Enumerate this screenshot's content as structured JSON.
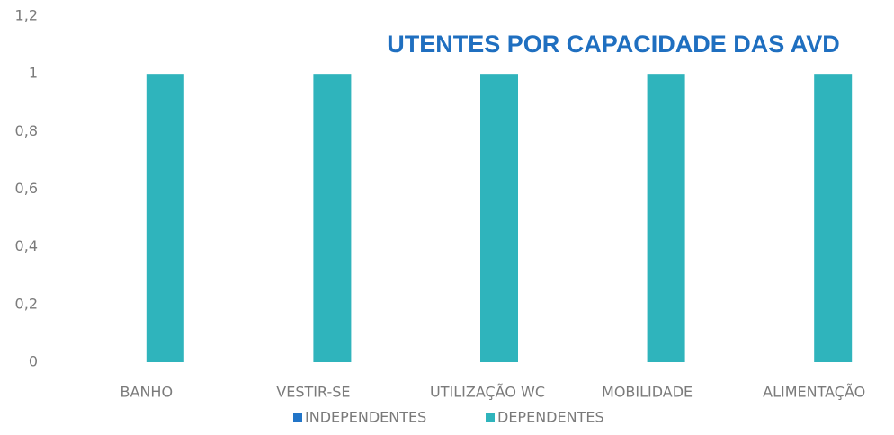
{
  "chart_data": {
    "type": "bar",
    "title": "UTENTES POR CAPACIDADE DAS AVD",
    "categories": [
      "BANHO",
      "VESTIR-SE",
      "UTILIZAÇÃO WC",
      "MOBILIDADE",
      "ALIMENTAÇÃO"
    ],
    "series": [
      {
        "name": "INDEPENDENTES",
        "color": "#2275c8",
        "values": [
          0,
          0,
          0,
          0,
          0
        ]
      },
      {
        "name": "DEPENDENTES",
        "color": "#2fb4bc",
        "values": [
          1,
          1,
          1,
          1,
          1
        ]
      }
    ],
    "ylim": [
      0,
      1.2
    ],
    "yticks": [
      0,
      {
        "value": 0.2,
        "label": "0,2"
      },
      {
        "value": 0.4,
        "label": "0,4"
      },
      {
        "value": 0.6,
        "label": "0,6"
      },
      {
        "value": 0.8,
        "label": "0,8"
      },
      1,
      {
        "value": 1.2,
        "label": "1,2"
      }
    ],
    "grid": false,
    "legend": "bottom"
  }
}
